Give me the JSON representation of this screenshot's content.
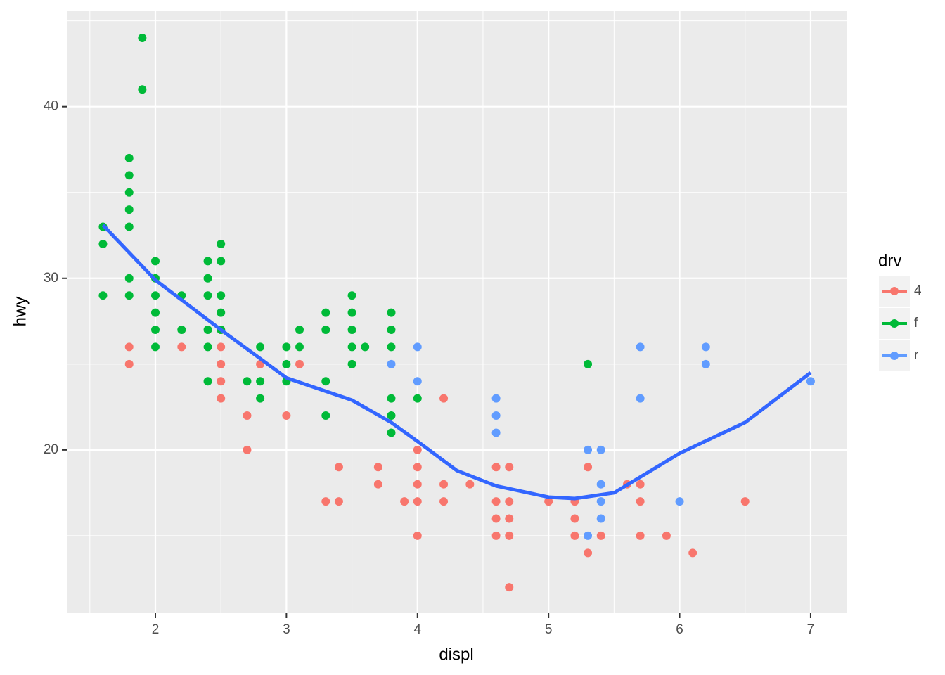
{
  "chart_data": {
    "type": "scatter",
    "x_label": "displ",
    "y_label": "hwy",
    "xlim": [
      1.324,
      7.274
    ],
    "ylim": [
      10.49,
      45.6
    ],
    "xticks": [
      2,
      3,
      4,
      5,
      6,
      7
    ],
    "yticks": [
      20,
      30,
      40
    ],
    "grid": true,
    "legend": "right",
    "legend_title": "drv",
    "series": [
      {
        "name": "4",
        "color": "#F8766D",
        "x": [
          1.8,
          1.8,
          2.2,
          2.5,
          2.5,
          2.5,
          2.5,
          2.5,
          2.7,
          2.7,
          2.8,
          3.0,
          3.1,
          3.3,
          3.4,
          3.4,
          3.7,
          3.7,
          3.9,
          4.0,
          4.0,
          4.0,
          4.0,
          4.0,
          4.2,
          4.2,
          4.2,
          4.4,
          4.6,
          4.6,
          4.6,
          4.6,
          4.7,
          4.7,
          4.7,
          4.7,
          4.7,
          5.0,
          5.2,
          5.2,
          5.2,
          5.3,
          5.3,
          5.4,
          5.6,
          5.7,
          5.7,
          5.7,
          5.9,
          6.1,
          6.5
        ],
        "values": [
          26,
          25,
          26,
          27,
          26,
          25,
          24,
          23,
          22,
          20,
          25,
          22,
          25,
          17,
          19,
          17,
          19,
          18,
          17,
          20,
          19,
          18,
          17,
          15,
          23,
          18,
          17,
          18,
          19,
          17,
          16,
          15,
          19,
          17,
          16,
          15,
          12,
          17,
          17,
          16,
          15,
          19,
          14,
          15,
          18,
          18,
          17,
          15,
          15,
          14,
          17
        ]
      },
      {
        "name": "f",
        "color": "#00BA38",
        "x": [
          1.6,
          1.6,
          1.6,
          1.8,
          1.8,
          1.8,
          1.8,
          1.8,
          1.8,
          1.8,
          1.9,
          1.9,
          2.0,
          2.0,
          2.0,
          2.0,
          2.0,
          2.0,
          2.2,
          2.2,
          2.4,
          2.4,
          2.4,
          2.4,
          2.4,
          2.4,
          2.5,
          2.5,
          2.5,
          2.5,
          2.5,
          2.7,
          2.8,
          2.8,
          2.8,
          3.0,
          3.0,
          3.0,
          3.1,
          3.1,
          3.3,
          3.3,
          3.3,
          3.3,
          3.5,
          3.5,
          3.5,
          3.5,
          3.5,
          3.6,
          3.8,
          3.8,
          3.8,
          3.8,
          3.8,
          3.8,
          4.0,
          5.3
        ],
        "values": [
          33,
          32,
          29,
          37,
          36,
          35,
          34,
          33,
          30,
          29,
          44,
          41,
          31,
          30,
          29,
          28,
          27,
          26,
          29,
          27,
          31,
          30,
          29,
          27,
          26,
          24,
          32,
          31,
          29,
          28,
          27,
          24,
          26,
          24,
          23,
          26,
          25,
          24,
          27,
          26,
          28,
          27,
          24,
          22,
          29,
          28,
          27,
          26,
          25,
          26,
          28,
          27,
          26,
          23,
          22,
          21,
          23,
          25
        ]
      },
      {
        "name": "r",
        "color": "#619CFF",
        "x": [
          3.8,
          4.0,
          4.0,
          4.6,
          4.6,
          4.6,
          5.3,
          5.3,
          5.4,
          5.4,
          5.4,
          5.4,
          5.7,
          5.7,
          6.0,
          6.2,
          6.2,
          7.0
        ],
        "values": [
          25,
          26,
          24,
          23,
          22,
          21,
          20,
          15,
          20,
          18,
          17,
          16,
          26,
          23,
          17,
          26,
          25,
          24
        ]
      }
    ],
    "smooth": {
      "color": "#3366FF",
      "x": [
        1.6,
        2.0,
        2.5,
        3.0,
        3.5,
        3.8,
        4.0,
        4.3,
        4.6,
        5.0,
        5.2,
        5.5,
        6.0,
        6.5,
        7.0
      ],
      "values": [
        33.1,
        29.9,
        27.0,
        24.2,
        22.9,
        21.6,
        20.5,
        18.8,
        17.9,
        17.25,
        17.17,
        17.5,
        19.8,
        21.6,
        24.5
      ]
    }
  }
}
